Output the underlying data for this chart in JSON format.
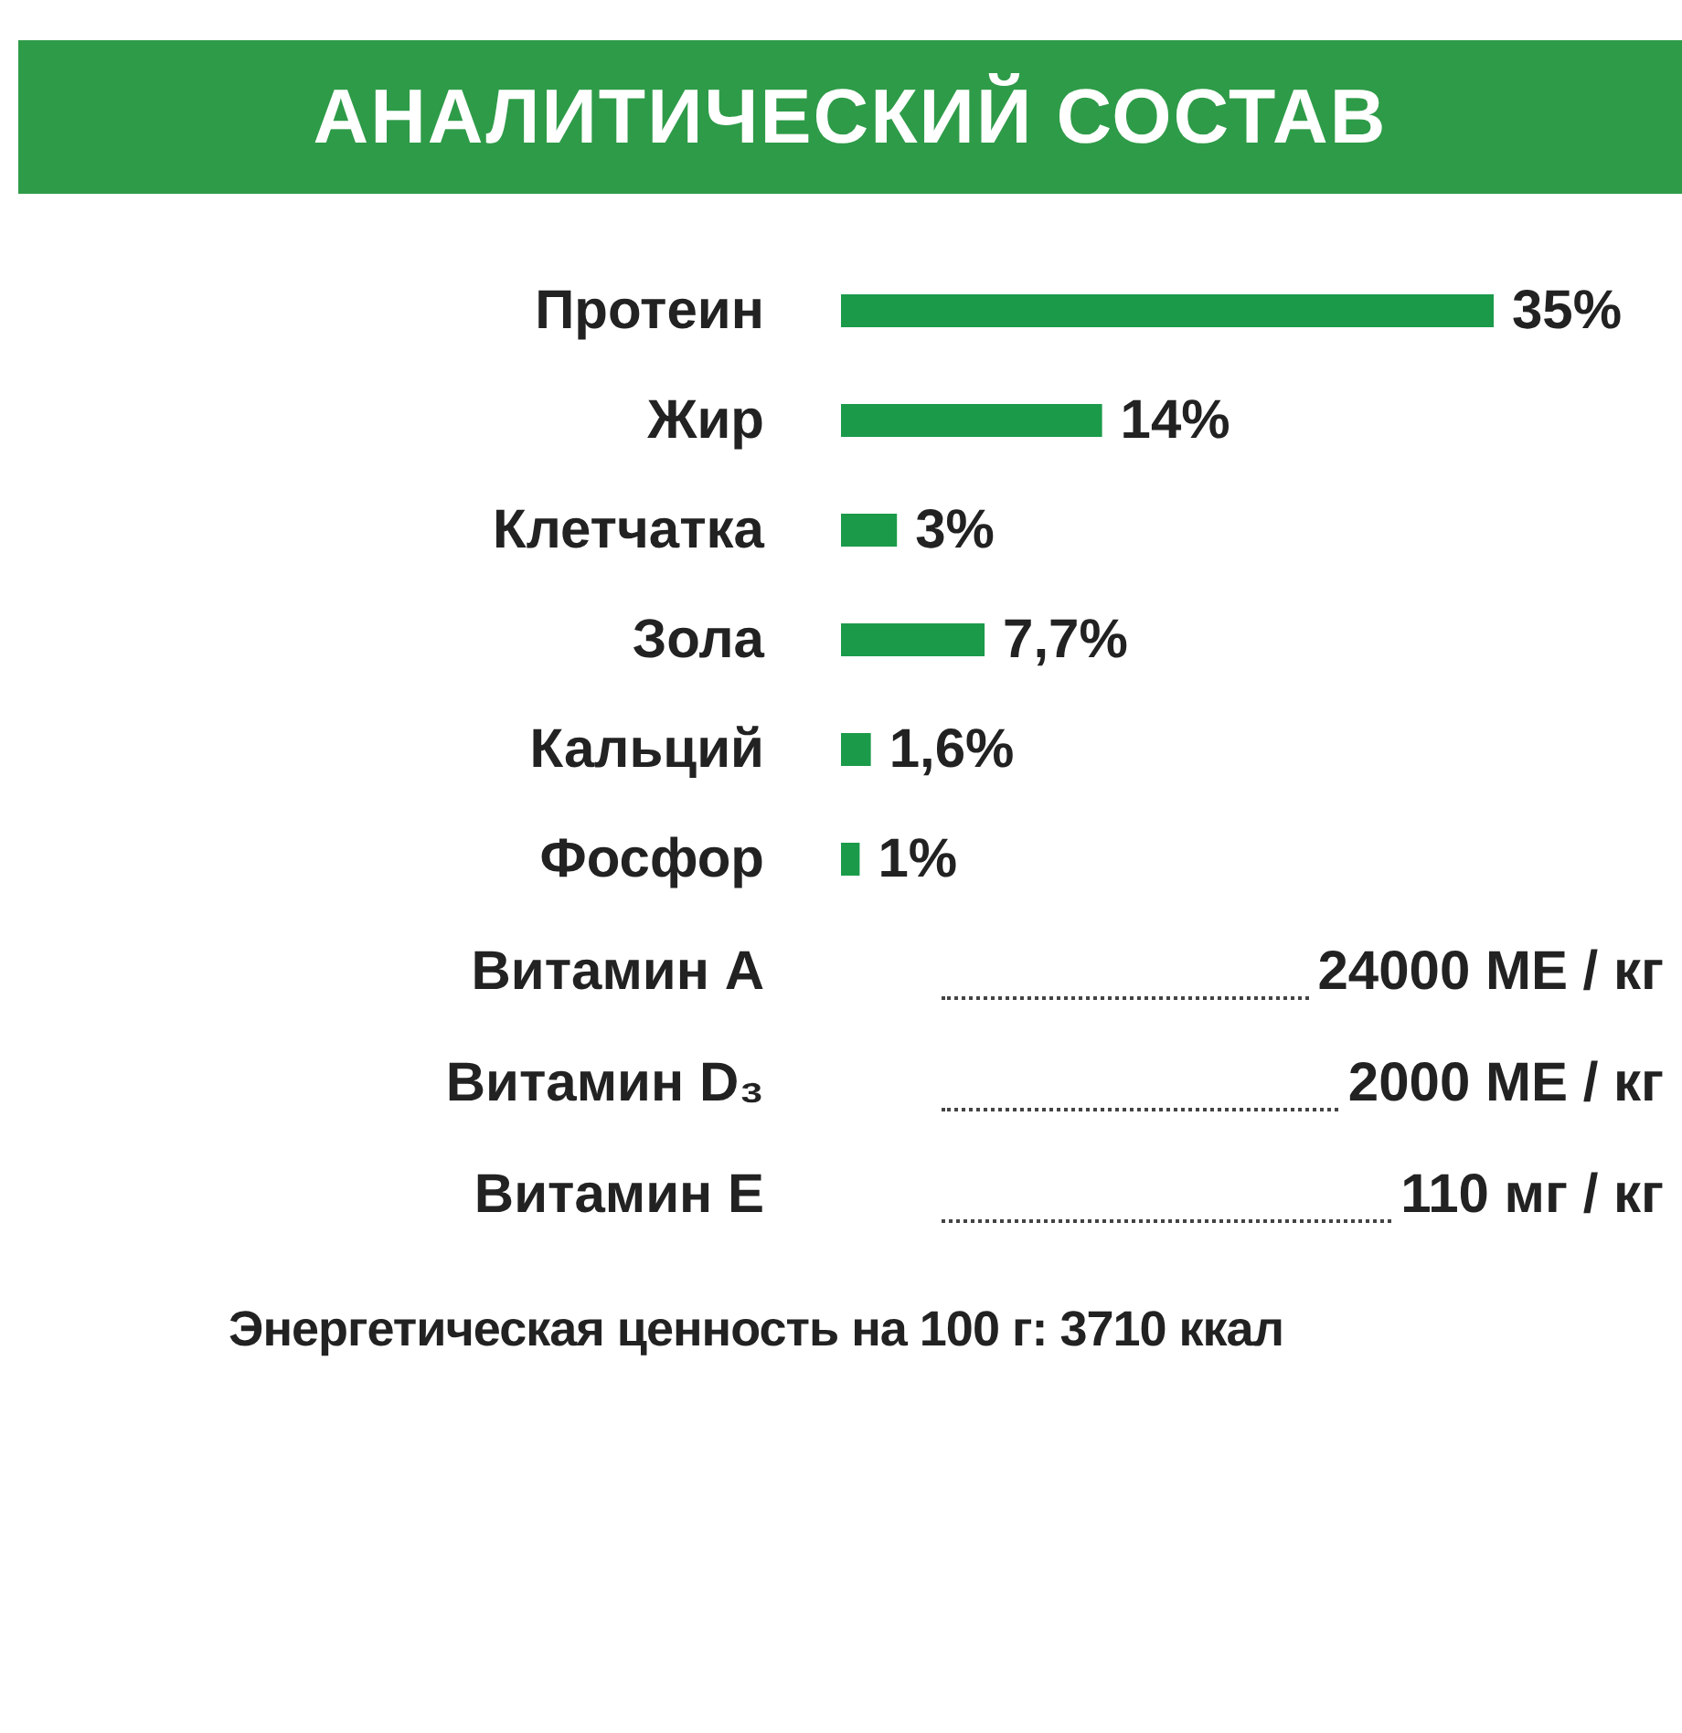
{
  "chart_data": {
    "type": "bar",
    "orientation": "horizontal",
    "title": "АНАЛИТИЧЕСКИЙ СОСТАВ",
    "categories": [
      "Протеин",
      "Жир",
      "Клетчатка",
      "Зола",
      "Кальций",
      "Фосфор"
    ],
    "values": [
      35,
      14,
      3,
      7.7,
      1.6,
      1
    ],
    "value_labels": [
      "35%",
      "14%",
      "3%",
      "7,7%",
      "1,6%",
      "1%"
    ],
    "color": "#1b9a4a",
    "tick_labels": "y",
    "annotations": [
      "Витамин A",
      "24000 МЕ / кг",
      "Витамин D₃",
      "2000 МЕ / кг",
      "Витамин E",
      "110 мг / кг",
      "Энергетическая ценность на 100 г:  3710 ккал"
    ]
  }
}
